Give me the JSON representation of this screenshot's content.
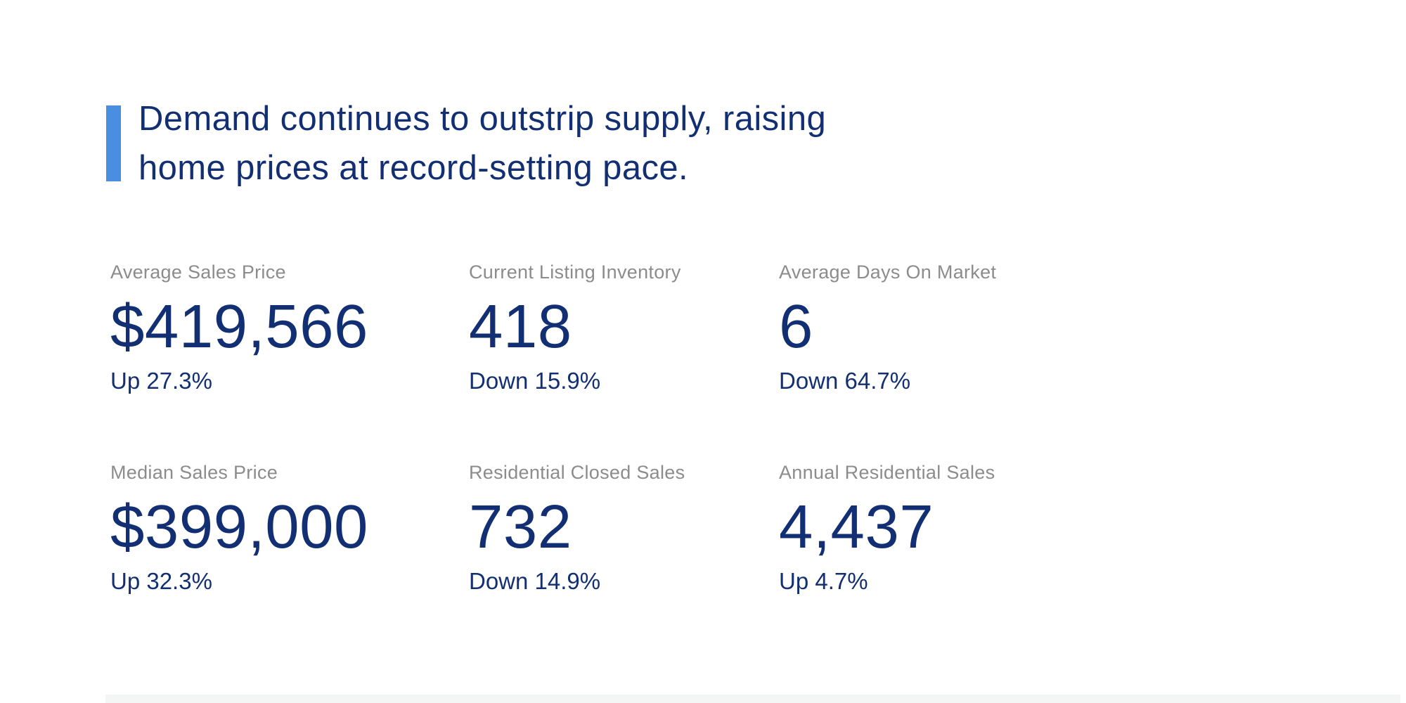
{
  "headline": {
    "line1": "Demand continues to outstrip supply, raising",
    "line2": "home prices at record-setting pace."
  },
  "stats": [
    {
      "label": "Average Sales Price",
      "value": "$419,566",
      "change": "Up 27.3%"
    },
    {
      "label": "Current Listing Inventory",
      "value": "418",
      "change": "Down 15.9%"
    },
    {
      "label": "Average Days On Market",
      "value": "6",
      "change": "Down 64.7%"
    },
    {
      "label": "Median Sales Price",
      "value": "$399,000",
      "change": "Up 32.3%"
    },
    {
      "label": "Residential Closed Sales",
      "value": "732",
      "change": "Down 14.9%"
    },
    {
      "label": "Annual Residential Sales",
      "value": "4,437",
      "change": "Up 4.7%"
    }
  ],
  "colors": {
    "navy": "#132F73",
    "accent_blue": "#4A8EE2",
    "label_gray": "#8C8C8C"
  }
}
